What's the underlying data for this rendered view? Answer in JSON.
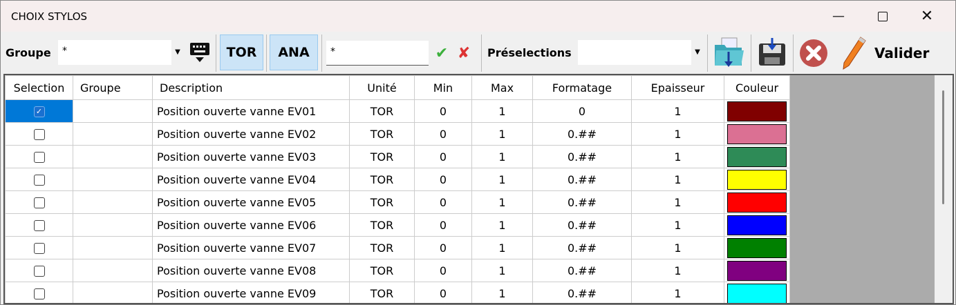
{
  "window": {
    "title": "CHOIX STYLOS"
  },
  "toolbar": {
    "groupe_label": "Groupe",
    "groupe_value": "*",
    "tor_label": "TOR",
    "ana_label": "ANA",
    "filter_value": "*",
    "preselections_label": "Préselections",
    "preselections_value": "",
    "valider_label": "Valider"
  },
  "table": {
    "headers": [
      "Selection",
      "Groupe",
      "Description",
      "Unité",
      "Min",
      "Max",
      "Formatage",
      "Epaisseur",
      "Couleur"
    ],
    "rows": [
      {
        "selected": true,
        "groupe": "",
        "description": "Position ouverte vanne EV01",
        "unite": "TOR",
        "min": "0",
        "max": "1",
        "formatage": "0",
        "epaisseur": "1",
        "couleur": "#800000"
      },
      {
        "selected": false,
        "groupe": "",
        "description": "Position ouverte vanne EV02",
        "unite": "TOR",
        "min": "0",
        "max": "1",
        "formatage": "0.##",
        "epaisseur": "1",
        "couleur": "#DB7093"
      },
      {
        "selected": false,
        "groupe": "",
        "description": "Position ouverte vanne EV03",
        "unite": "TOR",
        "min": "0",
        "max": "1",
        "formatage": "0.##",
        "epaisseur": "1",
        "couleur": "#2E8B57"
      },
      {
        "selected": false,
        "groupe": "",
        "description": "Position ouverte vanne EV04",
        "unite": "TOR",
        "min": "0",
        "max": "1",
        "formatage": "0.##",
        "epaisseur": "1",
        "couleur": "#FFFF00"
      },
      {
        "selected": false,
        "groupe": "",
        "description": "Position ouverte vanne EV05",
        "unite": "TOR",
        "min": "0",
        "max": "1",
        "formatage": "0.##",
        "epaisseur": "1",
        "couleur": "#FF0000"
      },
      {
        "selected": false,
        "groupe": "",
        "description": "Position ouverte vanne EV06",
        "unite": "TOR",
        "min": "0",
        "max": "1",
        "formatage": "0.##",
        "epaisseur": "1",
        "couleur": "#0000FF"
      },
      {
        "selected": false,
        "groupe": "",
        "description": "Position ouverte vanne EV07",
        "unite": "TOR",
        "min": "0",
        "max": "1",
        "formatage": "0.##",
        "epaisseur": "1",
        "couleur": "#008000"
      },
      {
        "selected": false,
        "groupe": "",
        "description": "Position ouverte vanne EV08",
        "unite": "TOR",
        "min": "0",
        "max": "1",
        "formatage": "0.##",
        "epaisseur": "1",
        "couleur": "#800080"
      },
      {
        "selected": false,
        "groupe": "",
        "description": "Position ouverte vanne EV09",
        "unite": "TOR",
        "min": "0",
        "max": "1",
        "formatage": "0.##",
        "epaisseur": "1",
        "couleur": "#00FFFF"
      }
    ]
  }
}
